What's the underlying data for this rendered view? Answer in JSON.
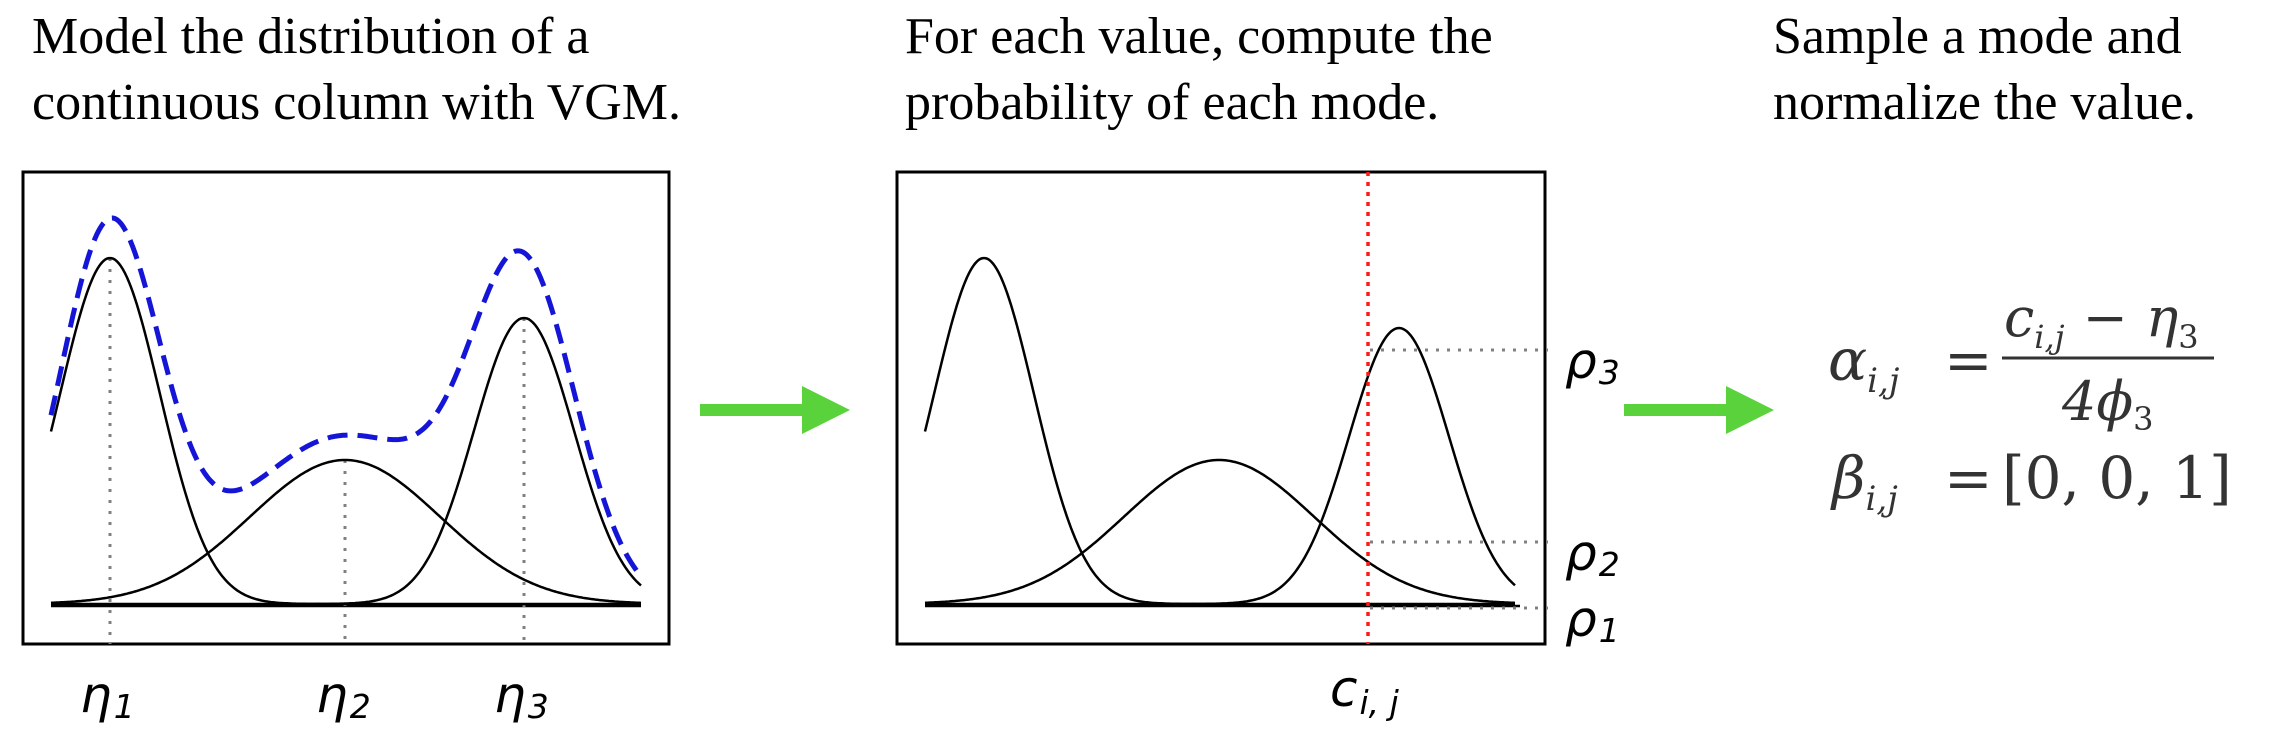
{
  "captions": {
    "step1_line1": "Model the distribution of a",
    "step1_line2": "continuous column with VGM.",
    "step2_line1": "For each value, compute the",
    "step2_line2": "probability of each mode.",
    "step3_line1": "Sample a mode and",
    "step3_line2": "normalize the value."
  },
  "panel1": {
    "mode_labels": [
      {
        "base": "η",
        "sub": "1"
      },
      {
        "base": "η",
        "sub": "2"
      },
      {
        "base": "η",
        "sub": "3"
      }
    ]
  },
  "panel2": {
    "x_label": {
      "base": "c",
      "sub": "i, j"
    },
    "prob_labels": [
      {
        "base": "ρ",
        "sub": "3"
      },
      {
        "base": "ρ",
        "sub": "2"
      },
      {
        "base": "ρ",
        "sub": "1"
      }
    ]
  },
  "formula": {
    "alpha_lhs": "α",
    "alpha_sub": "i,j",
    "equals": "=",
    "numerator": "c",
    "numerator_sub": "i,j",
    "minus": "−",
    "eta": "η",
    "eta_sub": "3",
    "denominator": "4ϕ",
    "denominator_sub": "3",
    "beta_lhs": "β",
    "beta_sub": "i,j",
    "beta_value": "[0, 0, 1]"
  },
  "colors": {
    "mixture_dashed": "#1515d8",
    "selected_value_line": "#ff1a1a",
    "arrow": "#5ad23c",
    "guide_dotted": "#808080"
  }
}
